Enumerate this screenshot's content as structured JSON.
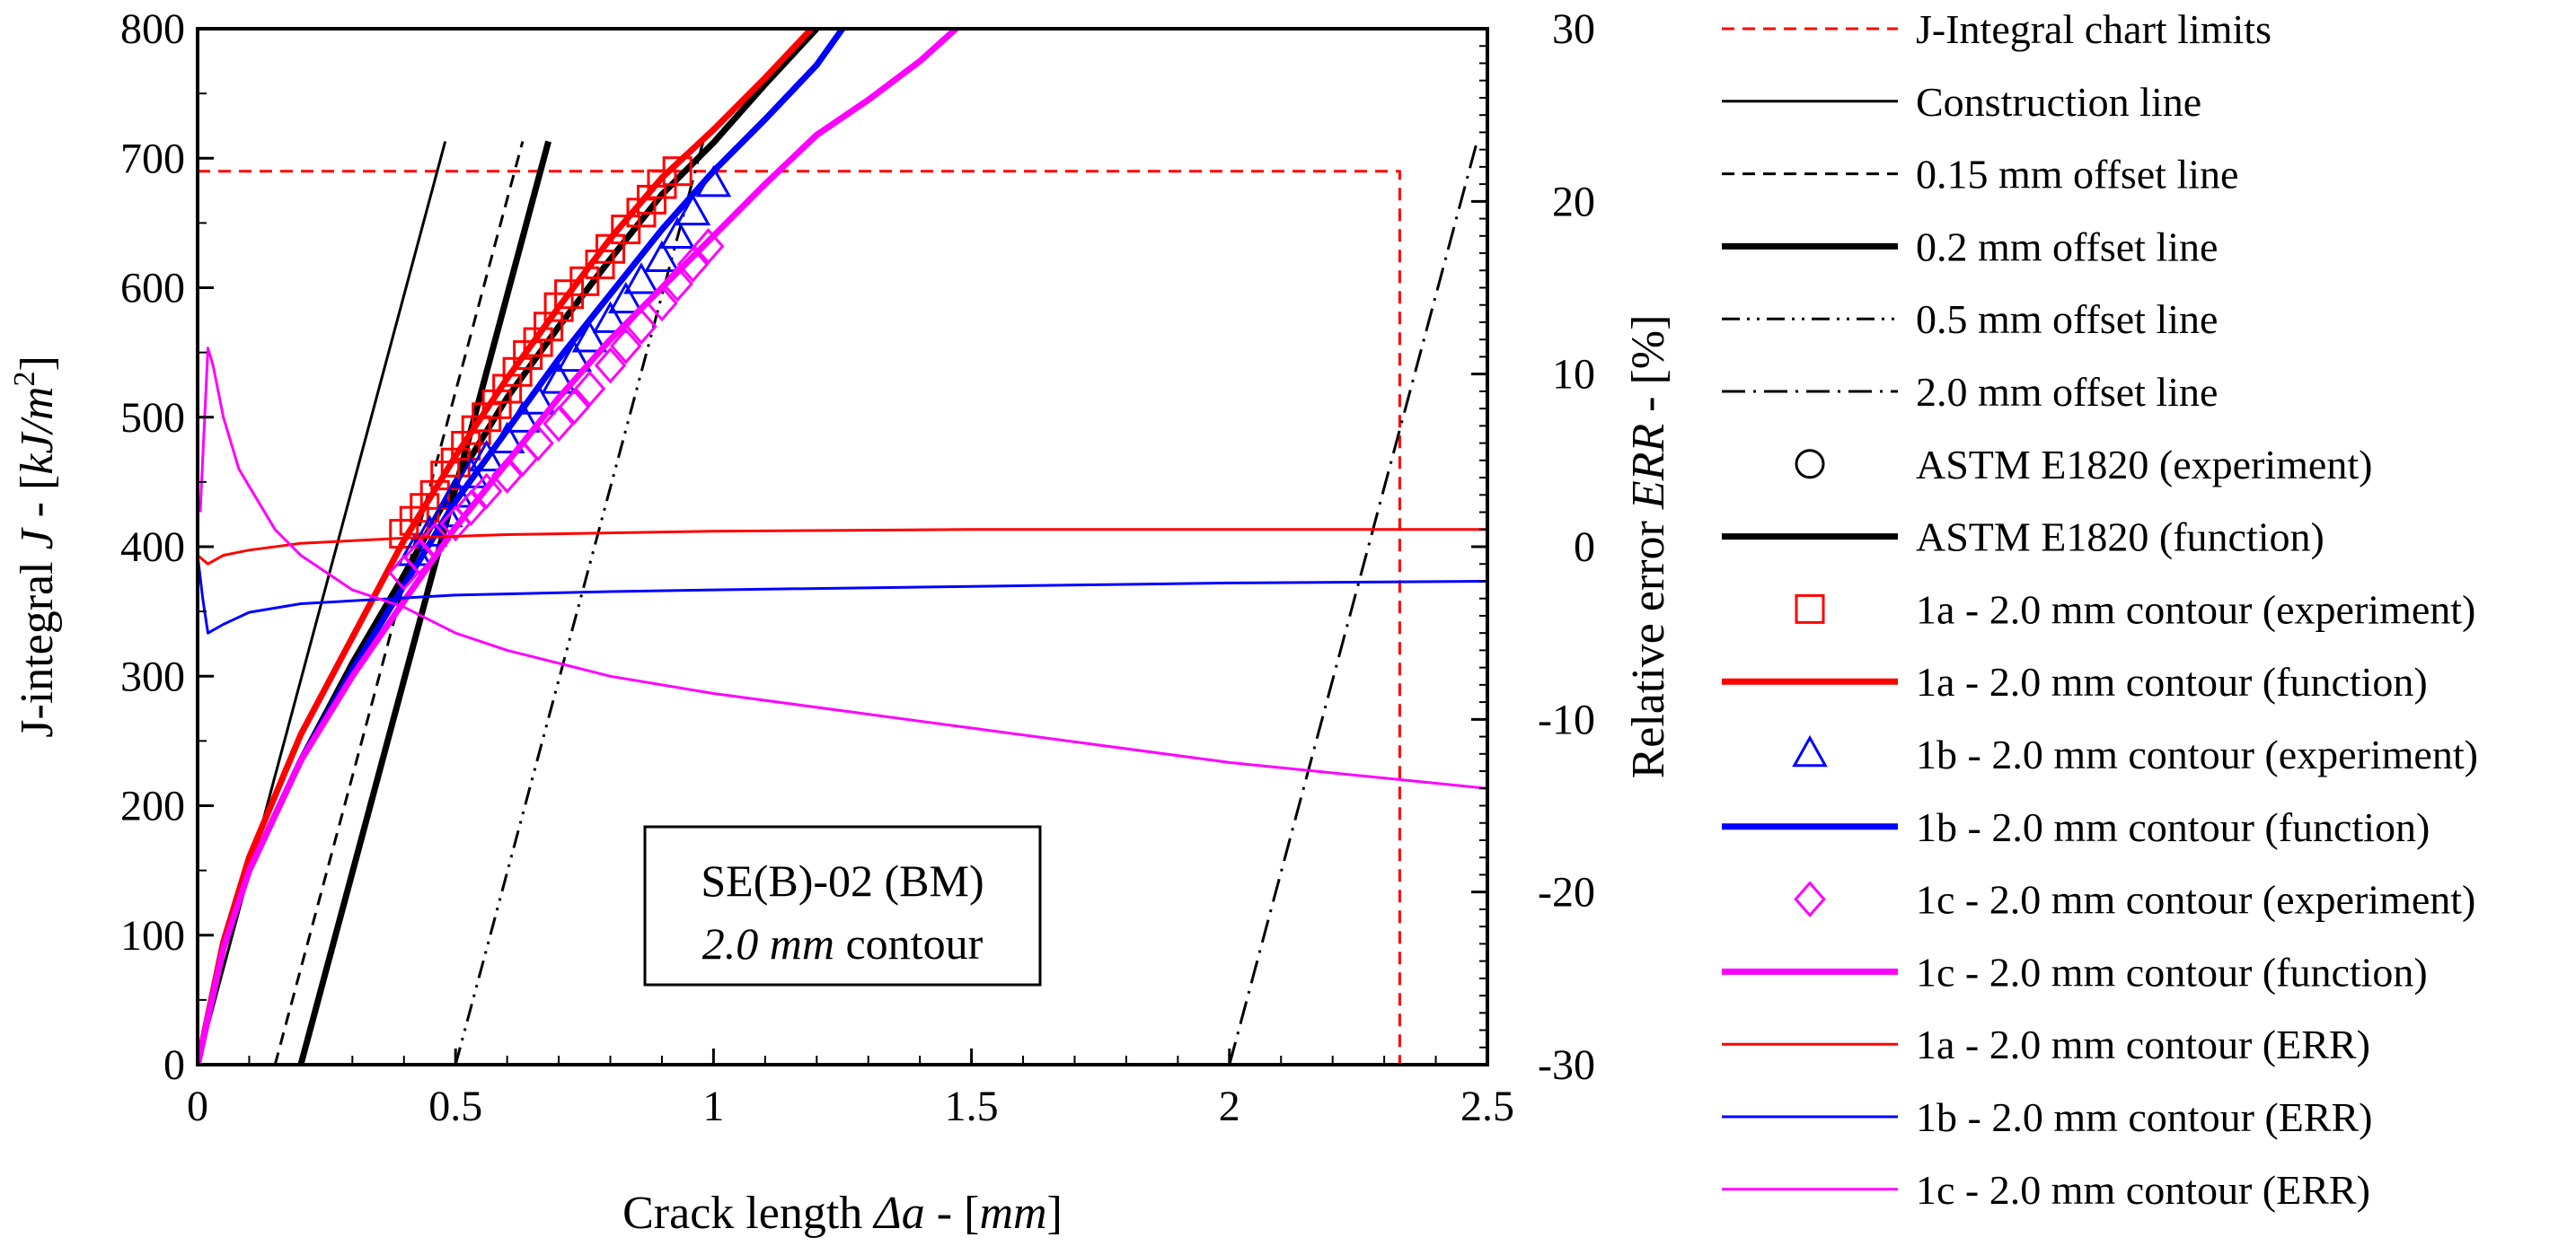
{
  "chart_data": {
    "type": "line",
    "xlabel_parts": [
      "Crack length ",
      "Δa",
      " - [",
      "mm",
      "]"
    ],
    "ylabel_parts": [
      "J-integral ",
      "J",
      " - [",
      "kJ/m",
      "2",
      "]"
    ],
    "y2label_parts": [
      "Relative error ",
      "ERR",
      " - [%]"
    ],
    "xlim": [
      0,
      2.5
    ],
    "ylim": [
      0,
      800
    ],
    "y2lim": [
      -30,
      30
    ],
    "x_ticks": [
      {
        "v": 0,
        "label": "0"
      },
      {
        "v": 0.5,
        "label": "0.5"
      },
      {
        "v": 1,
        "label": "1"
      },
      {
        "v": 1.5,
        "label": "1.5"
      },
      {
        "v": 2,
        "label": "2"
      },
      {
        "v": 2.5,
        "label": "2.5"
      }
    ],
    "y_ticks": [
      {
        "v": 0,
        "label": "0"
      },
      {
        "v": 100,
        "label": "100"
      },
      {
        "v": 200,
        "label": "200"
      },
      {
        "v": 300,
        "label": "300"
      },
      {
        "v": 400,
        "label": "400"
      },
      {
        "v": 500,
        "label": "500"
      },
      {
        "v": 600,
        "label": "600"
      },
      {
        "v": 700,
        "label": "700"
      },
      {
        "v": 800,
        "label": "800"
      }
    ],
    "y2_ticks": [
      {
        "v": -30,
        "label": "-30"
      },
      {
        "v": -20,
        "label": "-20"
      },
      {
        "v": -10,
        "label": "-10"
      },
      {
        "v": 0,
        "label": "0"
      },
      {
        "v": 10,
        "label": "10"
      },
      {
        "v": 20,
        "label": "20"
      },
      {
        "v": 30,
        "label": "30"
      }
    ],
    "annotation": {
      "line1": "SE(B)-02 (BM)",
      "line2_italic": "2.0 mm",
      "line2_rest": " contour"
    },
    "series": [
      {
        "id": "limits",
        "name": "J-Integral chart limits",
        "kind": "line",
        "color": "#ff0000",
        "dash": "dashed",
        "weight": "thin",
        "axis": "left",
        "points": [
          [
            0,
            690
          ],
          [
            2.33,
            690
          ],
          [
            2.33,
            0
          ]
        ]
      },
      {
        "id": "construction",
        "name": "Construction line",
        "kind": "line",
        "color": "#000000",
        "dash": "solid",
        "weight": "thin",
        "axis": "left",
        "points": [
          [
            0,
            0
          ],
          [
            0.48,
            713
          ]
        ]
      },
      {
        "id": "off015",
        "name": "0.15 mm offset line",
        "kind": "line",
        "color": "#000000",
        "dash": "dashed",
        "weight": "thin",
        "axis": "left",
        "points": [
          [
            0.15,
            0
          ],
          [
            0.63,
            713
          ]
        ]
      },
      {
        "id": "off02",
        "name": "0.2 mm offset line",
        "kind": "line",
        "color": "#000000",
        "dash": "solid",
        "weight": "thick",
        "axis": "left",
        "points": [
          [
            0.2,
            0
          ],
          [
            0.68,
            713
          ]
        ]
      },
      {
        "id": "off05",
        "name": "0.5 mm offset line",
        "kind": "line",
        "color": "#000000",
        "dash": "dashdotdot",
        "weight": "thin",
        "axis": "left",
        "points": [
          [
            0.5,
            0
          ],
          [
            0.98,
            713
          ]
        ]
      },
      {
        "id": "off20",
        "name": "2.0 mm offset line",
        "kind": "line",
        "color": "#000000",
        "dash": "dashdot",
        "weight": "thin",
        "axis": "left",
        "points": [
          [
            2.0,
            0
          ],
          [
            2.48,
            713
          ]
        ]
      },
      {
        "id": "astm_exp",
        "name": "ASTM E1820 (experiment)",
        "kind": "marker",
        "marker": "circle",
        "color": "#000000",
        "axis": "left",
        "points": []
      },
      {
        "id": "astm_fn",
        "name": "ASTM E1820 (function)",
        "kind": "line",
        "color": "#000000",
        "dash": "solid",
        "weight": "thick",
        "axis": "left",
        "points": [
          [
            0,
            0
          ],
          [
            0.05,
            90
          ],
          [
            0.1,
            150
          ],
          [
            0.2,
            235
          ],
          [
            0.3,
            310
          ],
          [
            0.4,
            378
          ],
          [
            0.5,
            450
          ],
          [
            0.6,
            515
          ],
          [
            0.7,
            570
          ],
          [
            0.8,
            622
          ],
          [
            0.9,
            672
          ],
          [
            1.0,
            712
          ],
          [
            1.1,
            757
          ],
          [
            1.2,
            800
          ]
        ]
      },
      {
        "id": "a_exp",
        "name": "1a - 2.0 mm contour (experiment)",
        "kind": "marker",
        "marker": "square",
        "color": "#ff0000",
        "axis": "left",
        "points": [
          [
            0.4,
            410
          ],
          [
            0.42,
            420
          ],
          [
            0.44,
            430
          ],
          [
            0.46,
            440
          ],
          [
            0.48,
            455
          ],
          [
            0.5,
            465
          ],
          [
            0.52,
            478
          ],
          [
            0.54,
            490
          ],
          [
            0.56,
            500
          ],
          [
            0.58,
            510
          ],
          [
            0.6,
            522
          ],
          [
            0.62,
            535
          ],
          [
            0.64,
            548
          ],
          [
            0.66,
            558
          ],
          [
            0.68,
            570
          ],
          [
            0.7,
            585
          ],
          [
            0.72,
            595
          ],
          [
            0.75,
            605
          ],
          [
            0.78,
            618
          ],
          [
            0.8,
            630
          ],
          [
            0.83,
            645
          ],
          [
            0.86,
            658
          ],
          [
            0.88,
            668
          ],
          [
            0.9,
            680
          ],
          [
            0.93,
            690
          ]
        ]
      },
      {
        "id": "a_fn",
        "name": "1a - 2.0 mm contour (function)",
        "kind": "line",
        "color": "#ff0000",
        "dash": "solid",
        "weight": "thick",
        "axis": "left",
        "points": [
          [
            0,
            0
          ],
          [
            0.05,
            95
          ],
          [
            0.1,
            160
          ],
          [
            0.2,
            255
          ],
          [
            0.3,
            330
          ],
          [
            0.4,
            405
          ],
          [
            0.5,
            470
          ],
          [
            0.6,
            530
          ],
          [
            0.7,
            585
          ],
          [
            0.8,
            638
          ],
          [
            0.9,
            685
          ],
          [
            1.0,
            722
          ],
          [
            1.1,
            762
          ],
          [
            1.19,
            800
          ]
        ]
      },
      {
        "id": "b_exp",
        "name": "1b - 2.0 mm contour (experiment)",
        "kind": "marker",
        "marker": "triangle",
        "color": "#0000ff",
        "axis": "left",
        "points": [
          [
            0.42,
            395
          ],
          [
            0.45,
            410
          ],
          [
            0.48,
            425
          ],
          [
            0.5,
            440
          ],
          [
            0.53,
            455
          ],
          [
            0.56,
            468
          ],
          [
            0.6,
            482
          ],
          [
            0.63,
            498
          ],
          [
            0.66,
            512
          ],
          [
            0.7,
            528
          ],
          [
            0.73,
            545
          ],
          [
            0.76,
            560
          ],
          [
            0.8,
            575
          ],
          [
            0.83,
            590
          ],
          [
            0.86,
            605
          ],
          [
            0.9,
            622
          ],
          [
            0.93,
            640
          ],
          [
            0.96,
            658
          ],
          [
            1.0,
            680
          ]
        ]
      },
      {
        "id": "b_fn",
        "name": "1b - 2.0 mm contour (function)",
        "kind": "line",
        "color": "#0000ff",
        "dash": "solid",
        "weight": "thick",
        "axis": "left",
        "points": [
          [
            0,
            0
          ],
          [
            0.05,
            90
          ],
          [
            0.1,
            150
          ],
          [
            0.2,
            235
          ],
          [
            0.3,
            305
          ],
          [
            0.4,
            370
          ],
          [
            0.5,
            435
          ],
          [
            0.6,
            490
          ],
          [
            0.7,
            545
          ],
          [
            0.8,
            595
          ],
          [
            0.9,
            645
          ],
          [
            1.0,
            690
          ],
          [
            1.1,
            730
          ],
          [
            1.2,
            772
          ],
          [
            1.25,
            800
          ]
        ]
      },
      {
        "id": "c_exp",
        "name": "1c - 2.0 mm contour (experiment)",
        "kind": "marker",
        "marker": "diamond",
        "color": "#ff00ff",
        "axis": "left",
        "points": [
          [
            0.4,
            380
          ],
          [
            0.43,
            392
          ],
          [
            0.46,
            405
          ],
          [
            0.5,
            418
          ],
          [
            0.53,
            430
          ],
          [
            0.56,
            443
          ],
          [
            0.6,
            455
          ],
          [
            0.63,
            468
          ],
          [
            0.66,
            480
          ],
          [
            0.7,
            495
          ],
          [
            0.73,
            508
          ],
          [
            0.76,
            522
          ],
          [
            0.8,
            540
          ],
          [
            0.83,
            555
          ],
          [
            0.86,
            570
          ],
          [
            0.9,
            588
          ],
          [
            0.93,
            603
          ],
          [
            0.96,
            618
          ],
          [
            0.99,
            632
          ]
        ]
      },
      {
        "id": "c_fn",
        "name": "1c - 2.0 mm contour (function)",
        "kind": "line",
        "color": "#ff00ff",
        "dash": "solid",
        "weight": "thick",
        "axis": "left",
        "points": [
          [
            0,
            0
          ],
          [
            0.05,
            90
          ],
          [
            0.1,
            150
          ],
          [
            0.2,
            235
          ],
          [
            0.3,
            300
          ],
          [
            0.4,
            358
          ],
          [
            0.5,
            415
          ],
          [
            0.6,
            465
          ],
          [
            0.7,
            515
          ],
          [
            0.8,
            560
          ],
          [
            0.9,
            600
          ],
          [
            1.0,
            640
          ],
          [
            1.1,
            680
          ],
          [
            1.2,
            718
          ],
          [
            1.3,
            745
          ],
          [
            1.4,
            775
          ],
          [
            1.47,
            800
          ]
        ]
      },
      {
        "id": "a_err",
        "name": "1a - 2.0 mm contour (ERR)",
        "kind": "line",
        "color": "#ff0000",
        "dash": "solid",
        "weight": "thin",
        "axis": "right",
        "points": [
          [
            0,
            -0.5
          ],
          [
            0.02,
            -1.0
          ],
          [
            0.05,
            -0.5
          ],
          [
            0.1,
            -0.2
          ],
          [
            0.2,
            0.2
          ],
          [
            0.4,
            0.5
          ],
          [
            0.6,
            0.7
          ],
          [
            0.8,
            0.8
          ],
          [
            1.0,
            0.9
          ],
          [
            1.5,
            1.0
          ],
          [
            2.0,
            1.0
          ],
          [
            2.5,
            1.0
          ]
        ]
      },
      {
        "id": "b_err",
        "name": "1b - 2.0 mm contour (ERR)",
        "kind": "line",
        "color": "#0000ff",
        "dash": "solid",
        "weight": "thin",
        "axis": "right",
        "points": [
          [
            0,
            -0.5
          ],
          [
            0.01,
            -3.0
          ],
          [
            0.02,
            -5.0
          ],
          [
            0.05,
            -4.5
          ],
          [
            0.1,
            -3.8
          ],
          [
            0.2,
            -3.3
          ],
          [
            0.5,
            -2.8
          ],
          [
            0.8,
            -2.6
          ],
          [
            1.0,
            -2.5
          ],
          [
            1.5,
            -2.3
          ],
          [
            2.0,
            -2.1
          ],
          [
            2.5,
            -2.0
          ]
        ]
      },
      {
        "id": "c_err",
        "name": "1c - 2.0 mm contour (ERR)",
        "kind": "line",
        "color": "#ff00ff",
        "dash": "solid",
        "weight": "thin",
        "axis": "right",
        "points": [
          [
            0.005,
            2.0
          ],
          [
            0.02,
            11.5
          ],
          [
            0.03,
            10.5
          ],
          [
            0.05,
            7.5
          ],
          [
            0.08,
            4.5
          ],
          [
            0.1,
            3.5
          ],
          [
            0.15,
            1.0
          ],
          [
            0.2,
            -0.5
          ],
          [
            0.3,
            -2.5
          ],
          [
            0.4,
            -3.5
          ],
          [
            0.5,
            -5.0
          ],
          [
            0.6,
            -6.0
          ],
          [
            0.8,
            -7.5
          ],
          [
            1.0,
            -8.5
          ],
          [
            1.5,
            -10.5
          ],
          [
            2.0,
            -12.5
          ],
          [
            2.5,
            -14.0
          ]
        ]
      }
    ]
  }
}
